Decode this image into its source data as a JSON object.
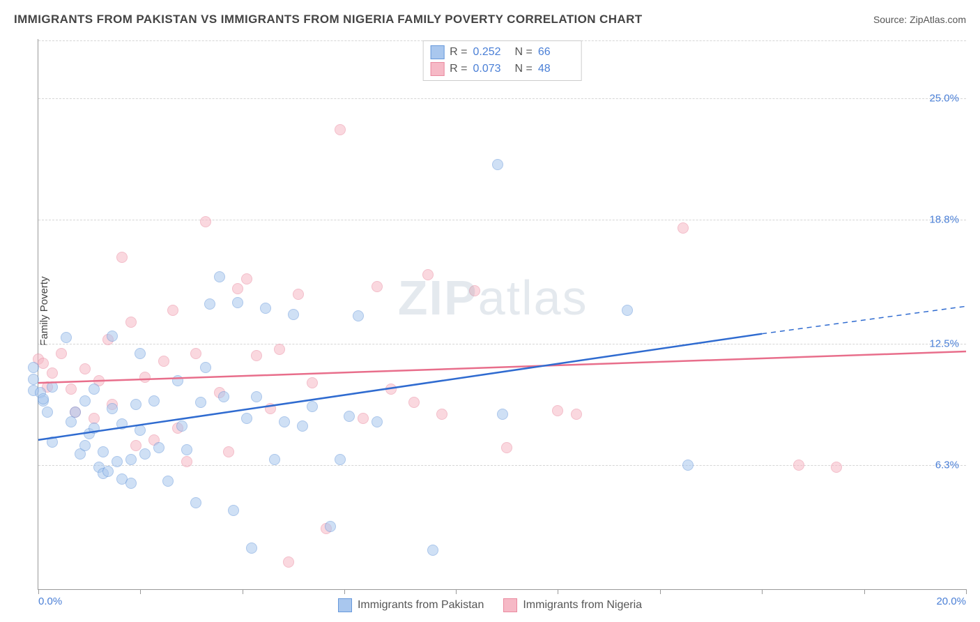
{
  "title": "IMMIGRANTS FROM PAKISTAN VS IMMIGRANTS FROM NIGERIA FAMILY POVERTY CORRELATION CHART",
  "source_label": "Source: ZipAtlas.com",
  "ylabel": "Family Poverty",
  "watermark_a": "ZIP",
  "watermark_b": "atlas",
  "chart": {
    "type": "scatter",
    "xlim": [
      0.0,
      20.0
    ],
    "ylim": [
      0.0,
      28.0
    ],
    "x_ticks": [
      0.0,
      2.2,
      4.4,
      6.6,
      9.0,
      11.2,
      13.4,
      15.6,
      17.8,
      20.0
    ],
    "x_tick_labels": {
      "0": "0.0%",
      "20": "20.0%"
    },
    "y_ticks": [
      6.3,
      12.5,
      18.8,
      25.0
    ],
    "y_tick_labels": [
      "6.3%",
      "12.5%",
      "18.8%",
      "25.0%"
    ],
    "grid_color": "#d5d5d5",
    "axis_color": "#999999",
    "label_color": "#4a7fd6",
    "background_color": "#ffffff",
    "marker_radius": 8,
    "marker_opacity": 0.55,
    "series": [
      {
        "name": "Immigrants from Pakistan",
        "color_fill": "#a9c7ee",
        "color_stroke": "#6799db",
        "R": "0.252",
        "N": "66",
        "trend": {
          "x1": 0.0,
          "y1": 7.6,
          "x2": 15.6,
          "y2": 13.0,
          "color": "#2f6bd0",
          "width": 2.5,
          "dash_extend_to_x": 20.0,
          "dash_y": 14.4
        },
        "points": [
          [
            -0.1,
            10.1
          ],
          [
            -0.1,
            10.7
          ],
          [
            -0.1,
            11.3
          ],
          [
            0.05,
            10.0
          ],
          [
            0.1,
            9.6
          ],
          [
            0.1,
            9.7
          ],
          [
            0.2,
            9.0
          ],
          [
            0.3,
            10.3
          ],
          [
            0.3,
            7.5
          ],
          [
            0.6,
            12.8
          ],
          [
            0.7,
            8.5
          ],
          [
            0.8,
            9.0
          ],
          [
            0.9,
            6.9
          ],
          [
            1.0,
            7.3
          ],
          [
            1.0,
            9.6
          ],
          [
            1.1,
            7.9
          ],
          [
            1.2,
            8.2
          ],
          [
            1.2,
            10.2
          ],
          [
            1.3,
            6.2
          ],
          [
            1.4,
            7.0
          ],
          [
            1.4,
            5.9
          ],
          [
            1.5,
            6.0
          ],
          [
            1.6,
            9.2
          ],
          [
            1.6,
            12.9
          ],
          [
            1.7,
            6.5
          ],
          [
            1.8,
            8.4
          ],
          [
            1.8,
            5.6
          ],
          [
            2.0,
            6.6
          ],
          [
            2.0,
            5.4
          ],
          [
            2.1,
            9.4
          ],
          [
            2.2,
            8.1
          ],
          [
            2.2,
            12.0
          ],
          [
            2.3,
            6.9
          ],
          [
            2.5,
            9.6
          ],
          [
            2.6,
            7.2
          ],
          [
            2.8,
            5.5
          ],
          [
            3.0,
            10.6
          ],
          [
            3.1,
            8.3
          ],
          [
            3.2,
            7.1
          ],
          [
            3.4,
            4.4
          ],
          [
            3.5,
            9.5
          ],
          [
            3.6,
            11.3
          ],
          [
            3.7,
            14.5
          ],
          [
            3.9,
            15.9
          ],
          [
            4.0,
            9.8
          ],
          [
            4.2,
            4.0
          ],
          [
            4.3,
            14.6
          ],
          [
            4.5,
            8.7
          ],
          [
            4.6,
            2.1
          ],
          [
            4.7,
            9.8
          ],
          [
            4.9,
            14.3
          ],
          [
            5.1,
            6.6
          ],
          [
            5.3,
            8.5
          ],
          [
            5.5,
            14.0
          ],
          [
            5.7,
            8.3
          ],
          [
            5.9,
            9.3
          ],
          [
            6.3,
            3.2
          ],
          [
            6.5,
            6.6
          ],
          [
            6.7,
            8.8
          ],
          [
            6.9,
            13.9
          ],
          [
            7.3,
            8.5
          ],
          [
            8.5,
            2.0
          ],
          [
            9.9,
            21.6
          ],
          [
            10.0,
            8.9
          ],
          [
            12.7,
            14.2
          ],
          [
            14.0,
            6.3
          ]
        ]
      },
      {
        "name": "Immigrants from Nigeria",
        "color_fill": "#f6b9c6",
        "color_stroke": "#ea8aa0",
        "R": "0.073",
        "N": "48",
        "trend": {
          "x1": 0.0,
          "y1": 10.5,
          "x2": 20.0,
          "y2": 12.1,
          "color": "#e86e8b",
          "width": 2.5
        },
        "points": [
          [
            0.0,
            11.7
          ],
          [
            0.1,
            11.5
          ],
          [
            0.2,
            10.3
          ],
          [
            0.3,
            11.0
          ],
          [
            0.5,
            12.0
          ],
          [
            0.7,
            10.2
          ],
          [
            0.8,
            9.0
          ],
          [
            1.0,
            11.2
          ],
          [
            1.2,
            8.7
          ],
          [
            1.3,
            10.6
          ],
          [
            1.5,
            12.7
          ],
          [
            1.6,
            9.4
          ],
          [
            1.8,
            16.9
          ],
          [
            2.0,
            13.6
          ],
          [
            2.1,
            7.3
          ],
          [
            2.3,
            10.8
          ],
          [
            2.5,
            7.6
          ],
          [
            2.7,
            11.6
          ],
          [
            2.9,
            14.2
          ],
          [
            3.0,
            8.2
          ],
          [
            3.2,
            6.5
          ],
          [
            3.4,
            12.0
          ],
          [
            3.6,
            18.7
          ],
          [
            3.9,
            10.0
          ],
          [
            4.1,
            7.0
          ],
          [
            4.3,
            15.3
          ],
          [
            4.5,
            15.8
          ],
          [
            4.7,
            11.9
          ],
          [
            5.0,
            9.2
          ],
          [
            5.2,
            12.2
          ],
          [
            5.4,
            1.4
          ],
          [
            5.6,
            15.0
          ],
          [
            5.9,
            10.5
          ],
          [
            6.2,
            3.1
          ],
          [
            6.5,
            23.4
          ],
          [
            7.0,
            8.7
          ],
          [
            7.3,
            15.4
          ],
          [
            7.6,
            10.2
          ],
          [
            8.1,
            9.5
          ],
          [
            8.4,
            16.0
          ],
          [
            8.7,
            8.9
          ],
          [
            9.4,
            15.2
          ],
          [
            10.1,
            7.2
          ],
          [
            11.2,
            9.1
          ],
          [
            11.6,
            8.9
          ],
          [
            13.9,
            18.4
          ],
          [
            16.4,
            6.3
          ],
          [
            17.2,
            6.2
          ]
        ]
      }
    ]
  },
  "legend_top_labels": {
    "R": "R =",
    "N": "N ="
  },
  "legend_bottom": [
    "Immigrants from Pakistan",
    "Immigrants from Nigeria"
  ]
}
